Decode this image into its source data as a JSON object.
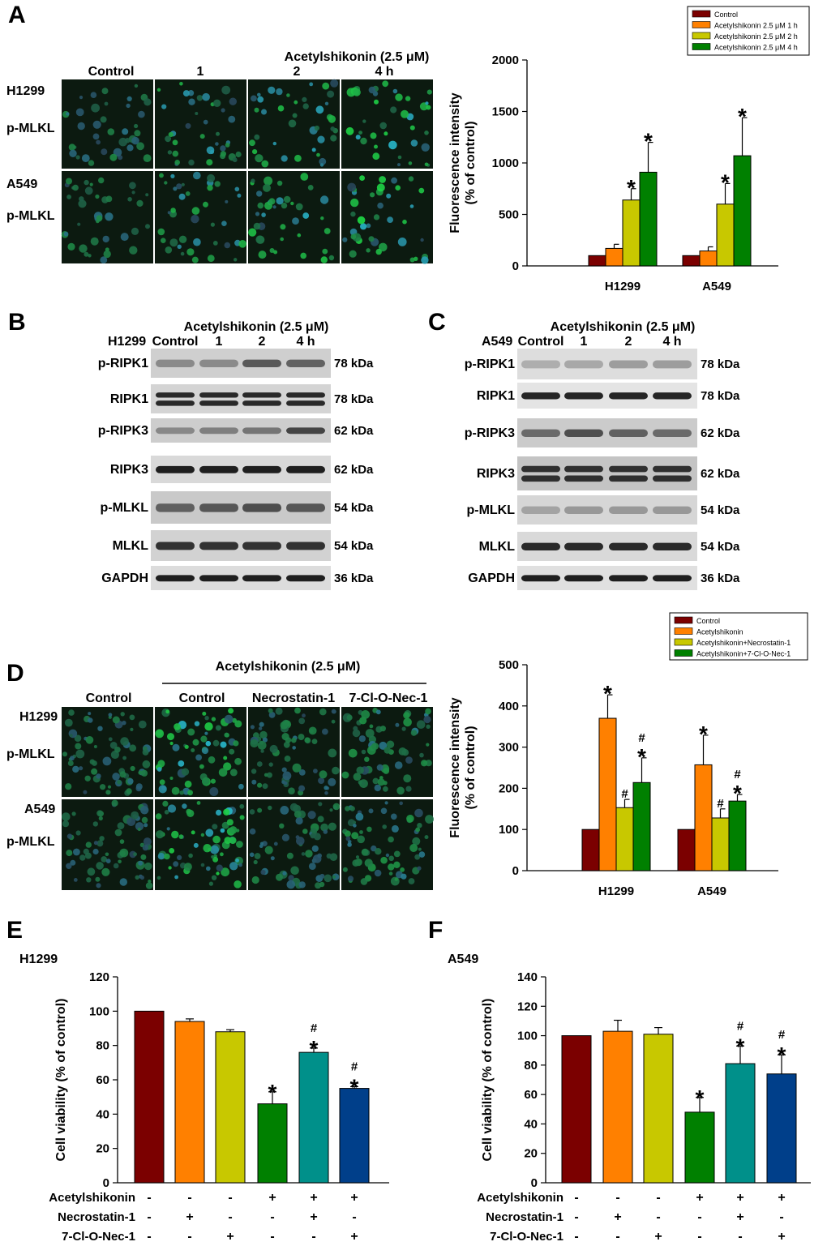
{
  "panel_a": {
    "letter": "A",
    "treatment_header": "Acetylshikonin (2.5 μM)",
    "columns": [
      "Control",
      "1",
      "2",
      "4 h"
    ],
    "rows": [
      {
        "cell": "H1299",
        "stain": "p-MLKL"
      },
      {
        "cell": "A549",
        "stain": "p-MLKL"
      }
    ]
  },
  "panel_b": {
    "letter": "B",
    "cell_line": "H1299",
    "treatment_header": "Acetylshikonin (2.5 μM)",
    "lanes": [
      "Control",
      "1",
      "2",
      "4 h"
    ],
    "blots": [
      {
        "protein": "p-RIPK1",
        "kda": "78 kDa"
      },
      {
        "protein": "RIPK1",
        "kda": "78 kDa"
      },
      {
        "protein": "p-RIPK3",
        "kda": "62 kDa"
      },
      {
        "protein": "RIPK3",
        "kda": "62 kDa"
      },
      {
        "protein": "p-MLKL",
        "kda": "54 kDa"
      },
      {
        "protein": "MLKL",
        "kda": "54 kDa"
      },
      {
        "protein": "GAPDH",
        "kda": "36 kDa"
      }
    ]
  },
  "panel_c": {
    "letter": "C",
    "cell_line": "A549",
    "treatment_header": "Acetylshikonin (2.5 μM)",
    "lanes": [
      "Control",
      "1",
      "2",
      "4 h"
    ],
    "blots": [
      {
        "protein": "p-RIPK1",
        "kda": "78 kDa"
      },
      {
        "protein": "RIPK1",
        "kda": "78 kDa"
      },
      {
        "protein": "p-RIPK3",
        "kda": "62 kDa"
      },
      {
        "protein": "RIPK3",
        "kda": "62 kDa"
      },
      {
        "protein": "p-MLKL",
        "kda": "54 kDa"
      },
      {
        "protein": "MLKL",
        "kda": "54 kDa"
      },
      {
        "protein": "GAPDH",
        "kda": "36 kDa"
      }
    ]
  },
  "panel_d": {
    "letter": "D",
    "treatment_header": "Acetylshikonin (2.5 μM)",
    "columns": [
      "Control",
      "Control",
      "Necrostatin-1",
      "7-Cl-O-Nec-1"
    ],
    "rows": [
      {
        "cell": "H1299",
        "stain": "p-MLKL"
      },
      {
        "cell": "A549",
        "stain": "p-MLKL"
      }
    ]
  },
  "panel_e": {
    "letter": "E",
    "cell_line": "H1299"
  },
  "panel_f": {
    "letter": "F",
    "cell_line": "A549"
  },
  "colors": {
    "dark_red": "#7b0000",
    "orange": "#ff8000",
    "yellow_green": "#c8c800",
    "green": "#008000",
    "teal": "#00908a",
    "blue": "#003f8a"
  },
  "chart_data": [
    {
      "id": "A",
      "type": "bar",
      "categories": [
        "H1299",
        "A549"
      ],
      "ylabel": "Fluorescence intensity\n(% of control)",
      "ylim": [
        0,
        2000
      ],
      "yticks": [
        0,
        500,
        1000,
        1500,
        2000
      ],
      "legend_position": "top-right",
      "series": [
        {
          "name": "Control",
          "color": "#7b0000",
          "values": [
            100,
            100
          ],
          "errors": [
            0,
            0
          ],
          "marks": [
            "",
            ""
          ]
        },
        {
          "name": "Acetylshikonin 2.5 μM 1 h",
          "color": "#ff8000",
          "values": [
            170,
            145
          ],
          "errors": [
            40,
            40
          ],
          "marks": [
            "",
            ""
          ]
        },
        {
          "name": "Acetylshikonin 2.5 μM 2 h",
          "color": "#c8c800",
          "values": [
            640,
            600
          ],
          "errors": [
            110,
            200
          ],
          "marks": [
            "*",
            "*"
          ]
        },
        {
          "name": "Acetylshikonin 2.5 μM 4 h",
          "color": "#008000",
          "values": [
            910,
            1070
          ],
          "errors": [
            290,
            370
          ],
          "marks": [
            "*",
            "*"
          ]
        }
      ]
    },
    {
      "id": "D",
      "type": "bar",
      "categories": [
        "H1299",
        "A549"
      ],
      "ylabel": "Fluorescence intensity\n(% of control)",
      "ylim": [
        0,
        500
      ],
      "yticks": [
        0,
        100,
        200,
        300,
        400,
        500
      ],
      "legend_position": "top-right",
      "series": [
        {
          "name": "Control",
          "color": "#7b0000",
          "values": [
            100,
            100
          ],
          "errors": [
            0,
            0
          ],
          "marks": [
            "",
            ""
          ]
        },
        {
          "name": "Acetylshikonin",
          "color": "#ff8000",
          "values": [
            370,
            257
          ],
          "errors": [
            57,
            72
          ],
          "marks": [
            "*",
            "*"
          ]
        },
        {
          "name": "Acetylshikonin+Necrostatin-1",
          "color": "#c8c800",
          "values": [
            153,
            128
          ],
          "errors": [
            20,
            22
          ],
          "marks": [
            "#",
            "#"
          ]
        },
        {
          "name": "Acetylshikonin+7-Cl-O-Nec-1",
          "color": "#008000",
          "values": [
            214,
            169
          ],
          "errors": [
            60,
            16
          ],
          "marks": [
            "#*",
            "#*"
          ]
        }
      ]
    },
    {
      "id": "E",
      "type": "bar",
      "ylabel": "Cell viability (% of control)",
      "ylim": [
        0,
        120
      ],
      "yticks": [
        0,
        20,
        40,
        60,
        80,
        100,
        120
      ],
      "values": [
        100,
        94,
        88,
        46,
        76,
        55
      ],
      "errors": [
        0,
        1.5,
        1.2,
        7,
        2.5,
        1
      ],
      "marks": [
        "",
        "",
        "",
        "*",
        "#*",
        "#*"
      ],
      "colors": [
        "#7b0000",
        "#ff8000",
        "#c8c800",
        "#008000",
        "#00908a",
        "#003f8a"
      ],
      "treatments": [
        {
          "name": "Acetylshikonin",
          "signs": [
            "-",
            "-",
            "-",
            "+",
            "+",
            "+"
          ]
        },
        {
          "name": "Necrostatin-1",
          "signs": [
            "-",
            "+",
            "-",
            "-",
            "+",
            "-"
          ]
        },
        {
          "name": "7-Cl-O-Nec-1",
          "signs": [
            "-",
            "-",
            "+",
            "-",
            "-",
            "+"
          ]
        }
      ]
    },
    {
      "id": "F",
      "type": "bar",
      "ylabel": "Cell viability (% of control)",
      "ylim": [
        0,
        140
      ],
      "yticks": [
        0,
        20,
        40,
        60,
        80,
        100,
        120,
        140
      ],
      "values": [
        100,
        103,
        101,
        48,
        81,
        74
      ],
      "errors": [
        0,
        7.5,
        4.5,
        10,
        12,
        13
      ],
      "marks": [
        "",
        "",
        "",
        "*",
        "#*",
        "#*"
      ],
      "colors": [
        "#7b0000",
        "#ff8000",
        "#c8c800",
        "#008000",
        "#00908a",
        "#003f8a"
      ],
      "treatments": [
        {
          "name": "Acetylshikonin",
          "signs": [
            "-",
            "-",
            "-",
            "+",
            "+",
            "+"
          ]
        },
        {
          "name": "Necrostatin-1",
          "signs": [
            "-",
            "+",
            "-",
            "-",
            "+",
            "-"
          ]
        },
        {
          "name": "7-Cl-O-Nec-1",
          "signs": [
            "-",
            "-",
            "+",
            "-",
            "-",
            "+"
          ]
        }
      ]
    }
  ]
}
